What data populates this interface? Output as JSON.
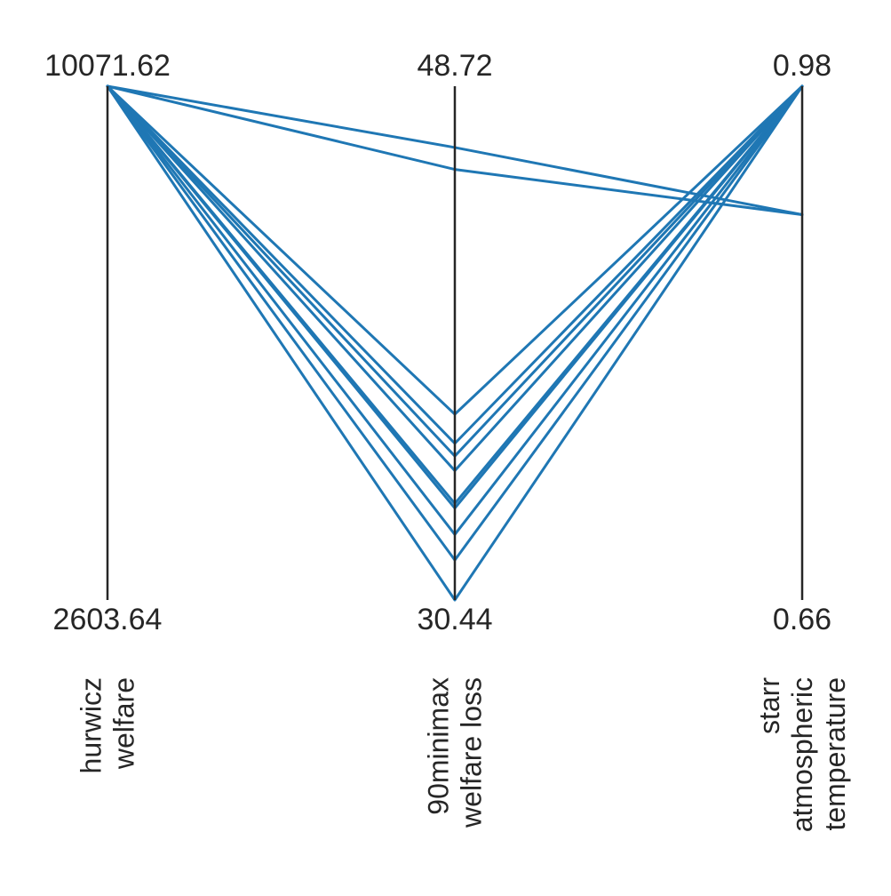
{
  "chart_data": {
    "type": "parallel_coordinates",
    "title": "",
    "line_color": "#1f77b4",
    "axes": [
      {
        "key": "hurwicz_welfare",
        "label_lines": [
          "hurwicz",
          "welfare"
        ],
        "max_label": "10071.62",
        "min_label": "2603.64",
        "range": [
          2603.64,
          10071.62
        ]
      },
      {
        "key": "minimax_welfare_loss",
        "label_lines": [
          "90minimax",
          "welfare loss"
        ],
        "max_label": "48.72",
        "min_label": "30.44",
        "range": [
          30.44,
          48.72
        ]
      },
      {
        "key": "starr_atmospheric_temperature",
        "label_lines": [
          "starr",
          "atmospheric",
          "temperature"
        ],
        "max_label": "0.98",
        "min_label": "0.66",
        "range": [
          0.66,
          0.98
        ]
      }
    ],
    "lines": [
      [
        10071.62,
        46.54,
        0.9
      ],
      [
        10071.62,
        45.76,
        0.9
      ],
      [
        10071.62,
        32.77,
        0.98
      ],
      [
        10071.62,
        30.44,
        0.98
      ],
      [
        10071.62,
        31.86,
        0.98
      ],
      [
        10071.62,
        33.87,
        0.98
      ],
      [
        10071.62,
        35.04,
        0.98
      ],
      [
        10071.62,
        35.56,
        0.98
      ],
      [
        10071.62,
        36.01,
        0.98
      ],
      [
        10071.62,
        37.05,
        0.98
      ],
      [
        10071.62,
        33.71,
        0.98
      ]
    ]
  }
}
